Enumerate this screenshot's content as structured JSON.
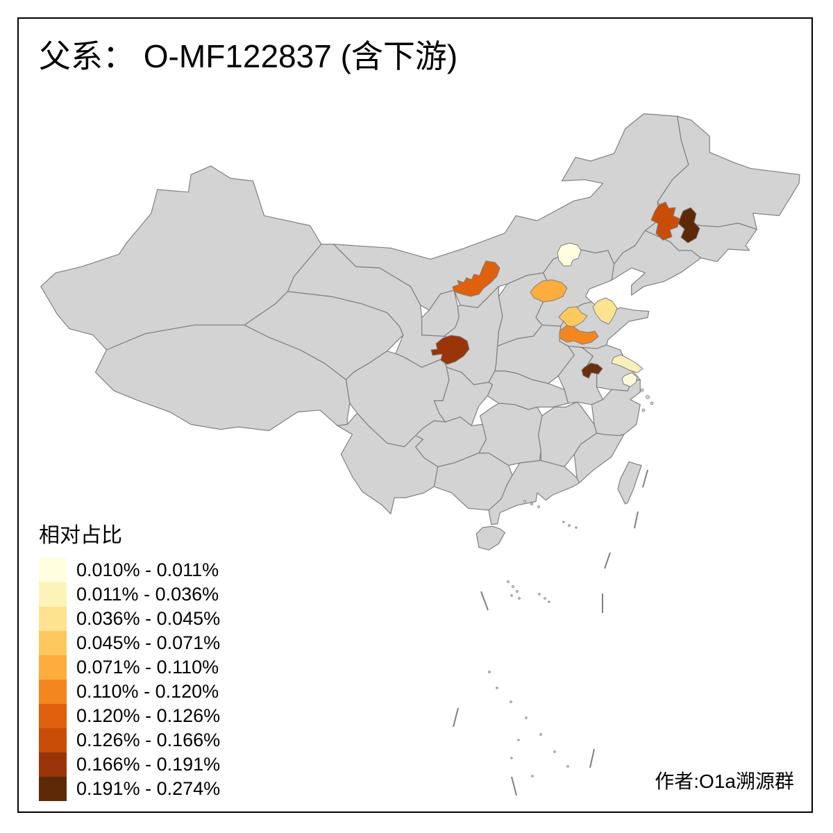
{
  "title": "父系： O-MF122837 (含下游)",
  "caption": "作者:O1a溯源群",
  "legend": {
    "title": "相对占比",
    "items": [
      {
        "label": "0.010% - 0.011%",
        "color": "#FFFEDE"
      },
      {
        "label": "0.011% - 0.036%",
        "color": "#FCF3B8"
      },
      {
        "label": "0.036% - 0.045%",
        "color": "#FDE38F"
      },
      {
        "label": "0.045% - 0.071%",
        "color": "#FDC95E"
      },
      {
        "label": "0.071% - 0.110%",
        "color": "#FDAC3E"
      },
      {
        "label": "0.110% - 0.120%",
        "color": "#F3861E"
      },
      {
        "label": "0.120% - 0.126%",
        "color": "#E0600D"
      },
      {
        "label": "0.126% - 0.166%",
        "color": "#C94D06"
      },
      {
        "label": "0.166% - 0.191%",
        "color": "#9B3509"
      },
      {
        "label": "0.191% - 0.274%",
        "color": "#5E2907"
      }
    ]
  },
  "map": {
    "background": "#FFFFFF",
    "base_fill": "#D3D3D3",
    "border_color": "#7F7F7F",
    "frame_color": "#000000",
    "regions": [
      {
        "id": "beijing",
        "color": "#FFFEDE",
        "range": "0.010% - 0.011%"
      },
      {
        "id": "south-hebei",
        "color": "#FDAC3E",
        "range": "0.071% - 0.110%"
      },
      {
        "id": "north-shaanxi",
        "color": "#E0600D",
        "range": "0.120% - 0.126%"
      },
      {
        "id": "northeast-west",
        "color": "#C94D06",
        "range": "0.126% - 0.166%"
      },
      {
        "id": "northeast-east",
        "color": "#5E2907",
        "range": "0.191% - 0.274%"
      },
      {
        "id": "central-shandong",
        "color": "#FDE38F",
        "range": "0.036% - 0.045%"
      },
      {
        "id": "north-henan-border",
        "color": "#FDC95E",
        "range": "0.045% - 0.071%"
      },
      {
        "id": "southwest-shandong",
        "color": "#F3861E",
        "range": "0.110% - 0.120%"
      },
      {
        "id": "central-shaanxi",
        "color": "#9B3509",
        "range": "0.166% - 0.191%"
      },
      {
        "id": "central-anhui",
        "color": "#6B2E0F",
        "range": "0.191% - 0.274%"
      },
      {
        "id": "mid-jiangsu",
        "color": "#F8EFB9",
        "range": "0.011% - 0.036%"
      },
      {
        "id": "south-jiangsu",
        "color": "#FDFADC",
        "range": "0.010% - 0.011%"
      }
    ]
  },
  "chart_data": {
    "type": "choropleth_map",
    "title": "父系： O-MF122837 (含下游)",
    "legend_title": "相对占比",
    "classes": [
      "0.010% - 0.011%",
      "0.011% - 0.036%",
      "0.036% - 0.045%",
      "0.045% - 0.071%",
      "0.071% - 0.110%",
      "0.110% - 0.120%",
      "0.120% - 0.126%",
      "0.126% - 0.166%",
      "0.166% - 0.191%",
      "0.191% - 0.274%"
    ],
    "highlighted_regions": [
      {
        "id": "beijing",
        "class_range": "0.010% - 0.011%"
      },
      {
        "id": "south-hebei",
        "class_range": "0.071% - 0.110%"
      },
      {
        "id": "north-shaanxi",
        "class_range": "0.120% - 0.126%"
      },
      {
        "id": "northeast-west",
        "class_range": "0.126% - 0.166%"
      },
      {
        "id": "northeast-east",
        "class_range": "0.191% - 0.274%"
      },
      {
        "id": "central-shandong",
        "class_range": "0.036% - 0.045%"
      },
      {
        "id": "north-henan-border",
        "class_range": "0.045% - 0.071%"
      },
      {
        "id": "southwest-shandong",
        "class_range": "0.110% - 0.120%"
      },
      {
        "id": "central-shaanxi",
        "class_range": "0.166% - 0.191%"
      },
      {
        "id": "central-anhui",
        "class_range": "0.191% - 0.274%"
      },
      {
        "id": "mid-jiangsu",
        "class_range": "0.011% - 0.036%"
      },
      {
        "id": "south-jiangsu",
        "class_range": "0.010% - 0.011%"
      }
    ],
    "legend_position": "bottom-left",
    "author_note": "作者:O1a溯源群"
  }
}
